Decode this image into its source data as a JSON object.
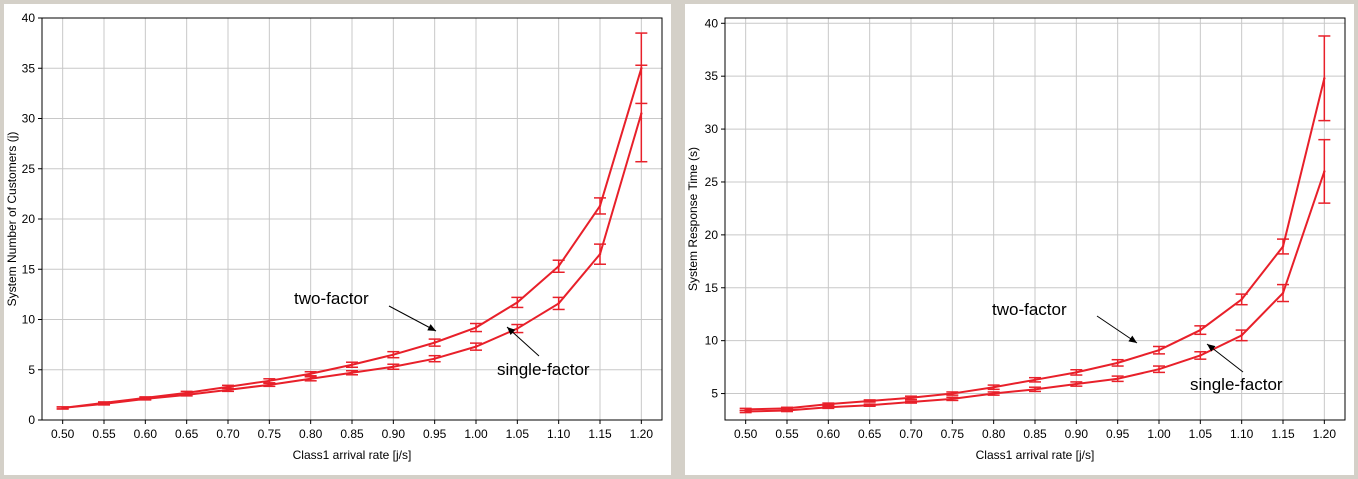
{
  "chart_data": [
    {
      "type": "line",
      "title": "",
      "xlabel": "Class1 arrival rate [j/s]",
      "ylabel": "System Number of Customers (j)",
      "xlim": [
        0.475,
        1.225
      ],
      "ylim": [
        0,
        40
      ],
      "grid": true,
      "legend": "none",
      "x_ticks": [
        "0.50",
        "0.55",
        "0.60",
        "0.65",
        "0.70",
        "0.75",
        "0.80",
        "0.85",
        "0.90",
        "0.95",
        "1.00",
        "1.05",
        "1.10",
        "1.15",
        "1.20"
      ],
      "y_ticks": [
        "0",
        "5",
        "10",
        "15",
        "20",
        "25",
        "30",
        "35",
        "40"
      ],
      "x": [
        0.5,
        0.55,
        0.6,
        0.65,
        0.7,
        0.75,
        0.8,
        0.85,
        0.9,
        0.95,
        1.0,
        1.05,
        1.1,
        1.15,
        1.2
      ],
      "series": [
        {
          "values": [
            1.2,
            1.7,
            2.2,
            2.7,
            3.3,
            3.9,
            4.6,
            5.5,
            6.5,
            7.7,
            9.2,
            11.7,
            15.3,
            21.3,
            35.0
          ],
          "errors": [
            0.1,
            0.1,
            0.1,
            0.15,
            0.15,
            0.2,
            0.2,
            0.25,
            0.3,
            0.35,
            0.4,
            0.5,
            0.6,
            0.8,
            3.5
          ]
        },
        {
          "values": [
            1.2,
            1.6,
            2.1,
            2.5,
            3.0,
            3.5,
            4.1,
            4.7,
            5.3,
            6.1,
            7.3,
            9.1,
            11.6,
            16.5,
            30.5
          ],
          "errors": [
            0.1,
            0.1,
            0.1,
            0.1,
            0.15,
            0.15,
            0.2,
            0.2,
            0.25,
            0.3,
            0.35,
            0.4,
            0.6,
            1.0,
            4.8
          ]
        }
      ],
      "annotations": [
        {
          "text": "two-factor",
          "x": 0.95,
          "y": 7.7
        },
        {
          "text": "single-factor",
          "x": 1.05,
          "y": 9.1
        }
      ]
    },
    {
      "type": "line",
      "title": "",
      "xlabel": "Class1 arrival rate [j/s]",
      "ylabel": "System Response Time (s)",
      "xlim": [
        0.475,
        1.225
      ],
      "ylim": [
        2.5,
        40.5
      ],
      "grid": true,
      "legend": "none",
      "x_ticks": [
        "0.50",
        "0.55",
        "0.60",
        "0.65",
        "0.70",
        "0.75",
        "0.80",
        "0.85",
        "0.90",
        "0.95",
        "1.00",
        "1.05",
        "1.10",
        "1.15",
        "1.20"
      ],
      "y_ticks": [
        "5",
        "10",
        "15",
        "20",
        "25",
        "30",
        "35",
        "40"
      ],
      "x": [
        0.5,
        0.55,
        0.6,
        0.65,
        0.7,
        0.75,
        0.8,
        0.85,
        0.9,
        0.95,
        1.0,
        1.05,
        1.1,
        1.15,
        1.2
      ],
      "series": [
        {
          "values": [
            3.5,
            3.6,
            4.0,
            4.3,
            4.6,
            5.0,
            5.6,
            6.3,
            7.0,
            7.9,
            9.1,
            11.0,
            13.9,
            18.9,
            34.8
          ],
          "errors": [
            0.1,
            0.1,
            0.1,
            0.1,
            0.15,
            0.15,
            0.2,
            0.2,
            0.25,
            0.3,
            0.35,
            0.4,
            0.5,
            0.7,
            4.0
          ]
        },
        {
          "values": [
            3.3,
            3.4,
            3.7,
            3.9,
            4.2,
            4.5,
            5.0,
            5.4,
            5.9,
            6.4,
            7.3,
            8.6,
            10.5,
            14.5,
            26.0
          ],
          "errors": [
            0.1,
            0.1,
            0.1,
            0.1,
            0.1,
            0.15,
            0.15,
            0.2,
            0.2,
            0.25,
            0.3,
            0.35,
            0.5,
            0.8,
            3.0
          ]
        }
      ],
      "annotations": [
        {
          "text": "two-factor",
          "x": 0.975,
          "y": 9.0
        },
        {
          "text": "single-factor",
          "x": 1.07,
          "y": 8.6
        }
      ]
    }
  ],
  "colors": {
    "line": "#e8202a",
    "grid": "#c8c8c8",
    "panel": "#d4d0c8"
  }
}
